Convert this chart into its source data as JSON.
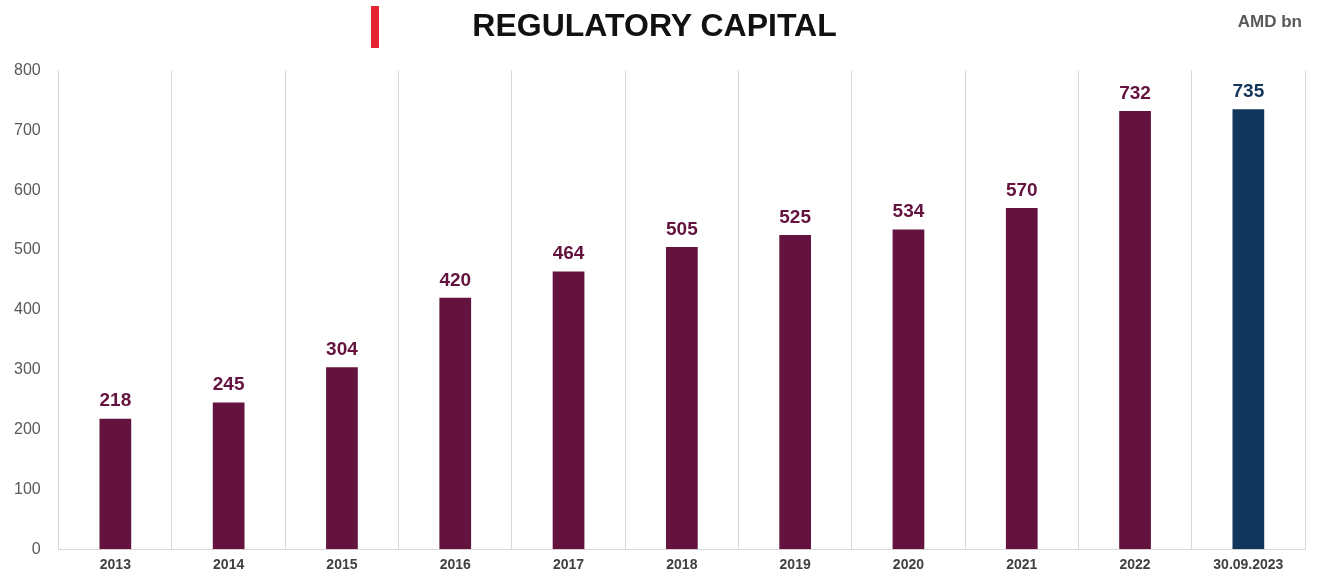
{
  "chart_data": {
    "type": "bar",
    "title": "REGULATORY CAPITAL",
    "annotations": [
      "AMD bn"
    ],
    "categories": [
      "2013",
      "2014",
      "2015",
      "2016",
      "2017",
      "2018",
      "2019",
      "2020",
      "2021",
      "2022",
      "30.09.2023"
    ],
    "values": [
      218,
      245,
      304,
      420,
      464,
      505,
      525,
      534,
      570,
      732,
      735
    ],
    "colors": [
      "#64133f",
      "#64133f",
      "#64133f",
      "#64133f",
      "#64133f",
      "#64133f",
      "#64133f",
      "#64133f",
      "#64133f",
      "#64133f",
      "#12355b"
    ],
    "ylim": [
      0,
      800
    ],
    "yticks": [
      0,
      100,
      200,
      300,
      400,
      500,
      600,
      700,
      800
    ],
    "grid": "x",
    "data_labels": true,
    "legend": false
  }
}
